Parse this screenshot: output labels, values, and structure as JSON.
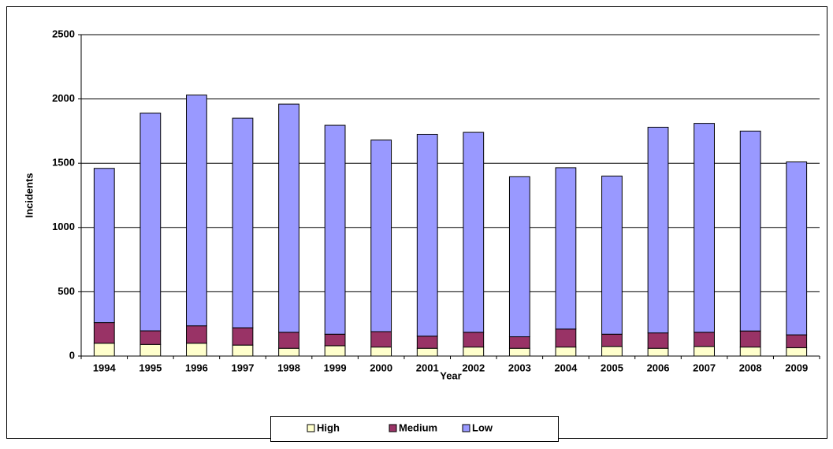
{
  "chart_data": {
    "type": "stacked-bar",
    "x_label": "Year",
    "y_label": "Incidents",
    "categories": [
      "1994",
      "1995",
      "1996",
      "1997",
      "1998",
      "1999",
      "2000",
      "2001",
      "2002",
      "2003",
      "2004",
      "2005",
      "2006",
      "2007",
      "2008",
      "2009"
    ],
    "series": [
      {
        "name": "High",
        "color": "#ffffcc",
        "values": [
          100,
          90,
          100,
          85,
          60,
          80,
          70,
          60,
          70,
          60,
          70,
          75,
          60,
          75,
          70,
          65
        ]
      },
      {
        "name": "Medium",
        "color": "#993366",
        "values": [
          160,
          106,
          135,
          135,
          125,
          90,
          120,
          95,
          115,
          90,
          140,
          95,
          120,
          110,
          125,
          100
        ]
      },
      {
        "name": "Low",
        "color": "#9999ff",
        "values": [
          1200,
          1694,
          1795,
          1630,
          1775,
          1625,
          1490,
          1570,
          1555,
          1245,
          1255,
          1230,
          1600,
          1625,
          1555,
          1345
        ]
      }
    ],
    "ylim": [
      0,
      2500
    ],
    "yticks": [
      0,
      500,
      1000,
      1500,
      2000,
      2500
    ],
    "grid": true,
    "legend": "bottom"
  }
}
